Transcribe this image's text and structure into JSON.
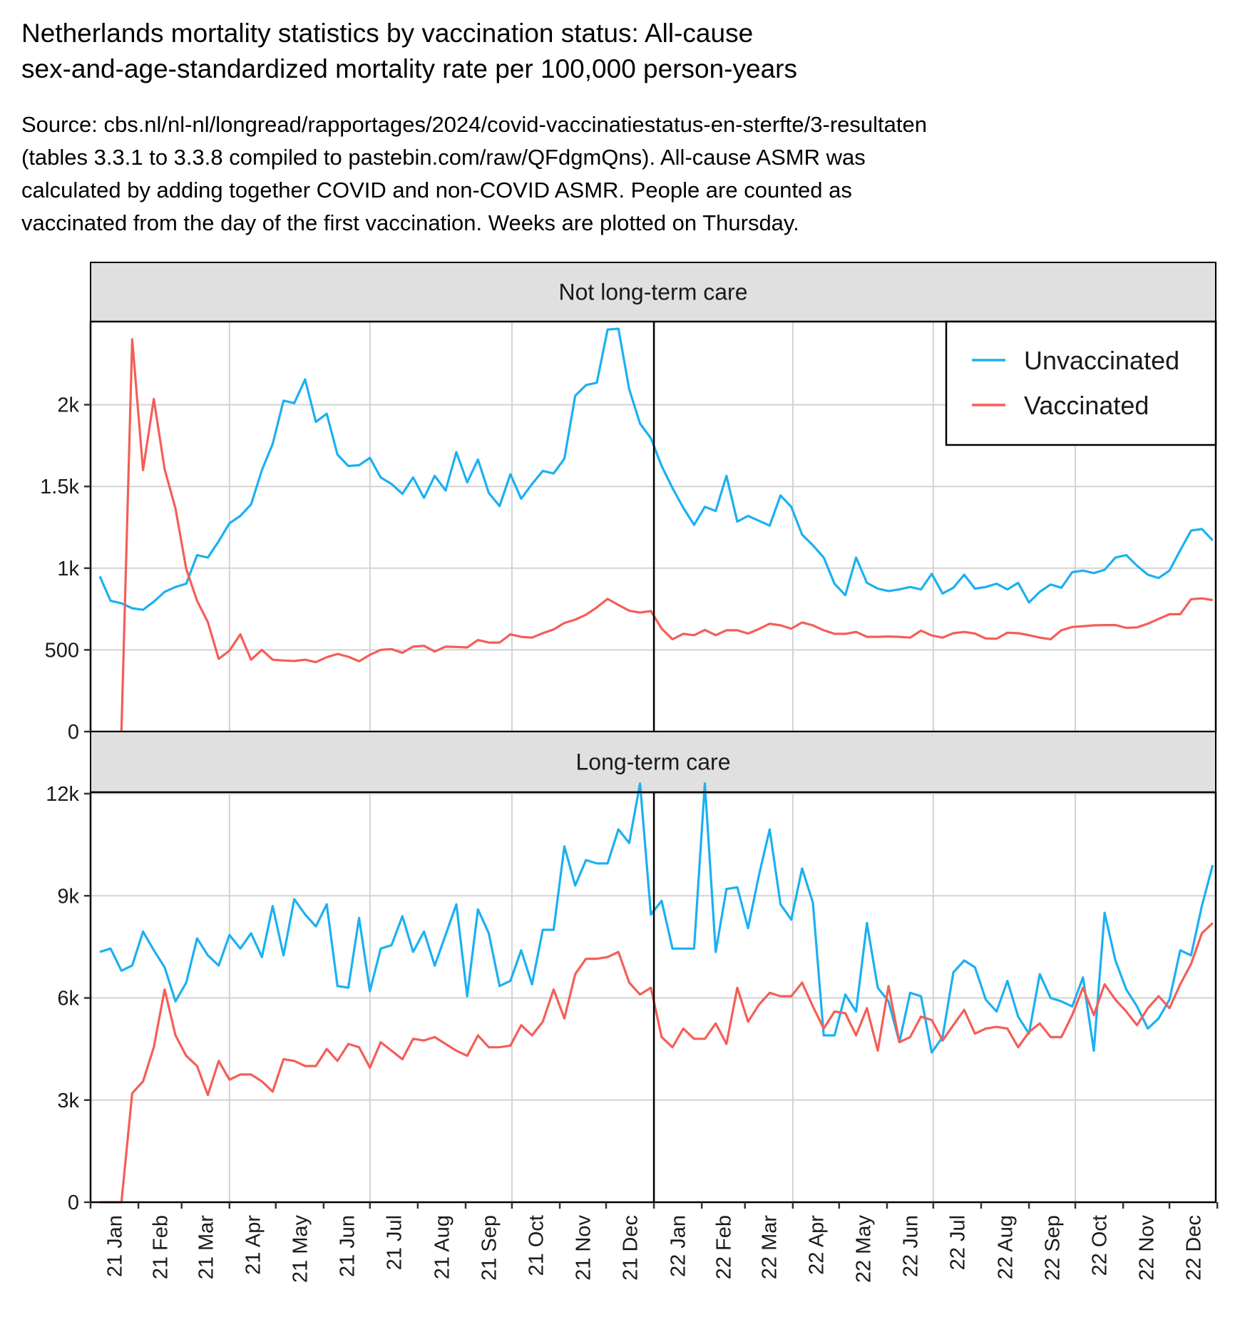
{
  "title": {
    "line1": "Netherlands mortality statistics by vaccination status: All-cause",
    "line2": "sex-and-age-standardized mortality rate per 100,000 person-years"
  },
  "subtitle": {
    "line1": "Source: cbs.nl/nl-nl/longread/rapportages/2024/covid-vaccinatiestatus-en-sterfte/3-resultaten",
    "line2": "(tables 3.3.1 to 3.3.8 compiled to pastebin.com/raw/QFdgmQns). All-cause ASMR was",
    "line3": "calculated by adding together COVID and non-COVID ASMR. People are counted as",
    "line4": "vaccinated from the day of the first vaccination. Weeks are plotted on Thursday."
  },
  "colors": {
    "unvaccinated": "#1bb0f2",
    "vaccinated": "#f45e57",
    "strip_background": "#e0e0e0",
    "grid": "#d3d3d3"
  },
  "chart_data": {
    "type": "line",
    "x_tick_labels": [
      "21 Jan",
      "21 Feb",
      "21 Mar",
      "21 Apr",
      "21 May",
      "21 Jun",
      "21 Jul",
      "21 Aug",
      "21 Sep",
      "21 Oct",
      "21 Nov",
      "21 Dec",
      "22 Jan",
      "22 Feb",
      "22 Mar",
      "22 Apr",
      "22 May",
      "22 Jun",
      "22 Jul",
      "22 Aug",
      "22 Sep",
      "22 Oct",
      "22 Nov",
      "22 Dec"
    ],
    "x_range": [
      "2021-01-01",
      "2022-12-31"
    ],
    "x_start": "2021-01-07",
    "x_step_days": 7,
    "vertical_reference_line": "2022-01-01",
    "grid": true,
    "legend": {
      "position": "top-right",
      "entries": [
        "Unvaccinated",
        "Vaccinated"
      ]
    },
    "panels": [
      {
        "label": "Not long-term care",
        "ylim": [
          0,
          2500
        ],
        "yticks": [
          0,
          500,
          1000,
          1500,
          2000
        ],
        "ytick_labels": [
          "0",
          "500",
          "1k",
          "1.5k",
          "2k"
        ],
        "series": [
          {
            "name": "Unvaccinated",
            "color": "#1bb0f2",
            "values": [
              950,
              800,
              785,
              755,
              745,
              795,
              855,
              885,
              905,
              1080,
              1065,
              1165,
              1275,
              1320,
              1390,
              1600,
              1760,
              2025,
              2010,
              2155,
              1895,
              1945,
              1695,
              1625,
              1630,
              1675,
              1555,
              1515,
              1455,
              1555,
              1430,
              1565,
              1475,
              1710,
              1525,
              1665,
              1460,
              1380,
              1575,
              1425,
              1515,
              1595,
              1580,
              1670,
              2055,
              2120,
              2135,
              2460,
              2465,
              2095,
              1885,
              1795,
              1625,
              1490,
              1370,
              1265,
              1375,
              1350,
              1565,
              1285,
              1320,
              1290,
              1260,
              1445,
              1375,
              1205,
              1140,
              1065,
              905,
              835,
              1065,
              910,
              875,
              860,
              870,
              885,
              870,
              965,
              845,
              880,
              960,
              875,
              885,
              905,
              870,
              910,
              790,
              855,
              900,
              880,
              975,
              985,
              970,
              990,
              1065,
              1080,
              1015,
              960,
              940,
              985,
              1110,
              1230,
              1240,
              1170
            ]
          },
          {
            "name": "Vaccinated",
            "color": "#f45e57",
            "values": [
              null,
              null,
              0,
              2400,
              1600,
              2035,
              1605,
              1365,
              995,
              800,
              670,
              445,
              495,
              595,
              440,
              500,
              440,
              435,
              432,
              440,
              425,
              455,
              475,
              458,
              430,
              470,
              500,
              505,
              482,
              520,
              525,
              490,
              520,
              518,
              515,
              560,
              545,
              545,
              595,
              580,
              575,
              602,
              625,
              665,
              685,
              715,
              760,
              812,
              775,
              740,
              728,
              738,
              630,
              565,
              598,
              590,
              622,
              590,
              620,
              620,
              600,
              628,
              660,
              650,
              630,
              668,
              650,
              620,
              598,
              598,
              610,
              580,
              580,
              582,
              580,
              575,
              618,
              588,
              575,
              602,
              610,
              600,
              570,
              568,
              605,
              602,
              590,
              575,
              565,
              620,
              640,
              645,
              650,
              652,
              652,
              635,
              638,
              660,
              690,
              718,
              718,
              810,
              815,
              805
            ]
          }
        ]
      },
      {
        "label": "Long-term care",
        "ylim": [
          0,
          12000
        ],
        "yticks": [
          0,
          3000,
          6000,
          9000,
          12000
        ],
        "ytick_labels": [
          "0",
          "3k",
          "6k",
          "9k",
          "12k"
        ],
        "series": [
          {
            "name": "Unvaccinated",
            "color": "#1bb0f2",
            "values": [
              7350,
              7450,
              6800,
              6950,
              7950,
              7400,
              6900,
              5900,
              6450,
              7750,
              7250,
              6950,
              7850,
              7450,
              7900,
              7200,
              8700,
              7250,
              8900,
              8450,
              8100,
              8750,
              6350,
              6300,
              8350,
              6200,
              7450,
              7550,
              8400,
              7350,
              7950,
              6950,
              7850,
              8750,
              6050,
              8600,
              7900,
              6350,
              6500,
              7400,
              6400,
              8000,
              8000,
              10450,
              9300,
              10050,
              9950,
              9950,
              10950,
              10550,
              12300,
              8450,
              8850,
              7450,
              7450,
              7450,
              12300,
              7350,
              9200,
              9250,
              8050,
              9600,
              10950,
              8750,
              8300,
              9800,
              8800,
              4900,
              4900,
              6100,
              5600,
              8200,
              6300,
              5900,
              4700,
              6150,
              6050,
              4400,
              4850,
              6750,
              7100,
              6900,
              5950,
              5600,
              6500,
              5450,
              4950,
              6700,
              6000,
              5900,
              5750,
              6600,
              4450,
              8500,
              7100,
              6250,
              5750,
              5100,
              5400,
              5950,
              7400,
              7250,
              8700,
              9900
            ]
          },
          {
            "name": "Vaccinated",
            "color": "#f45e57",
            "values": [
              0,
              0,
              0,
              3200,
              3550,
              4550,
              6250,
              4900,
              4300,
              4000,
              3150,
              4150,
              3600,
              3750,
              3750,
              3550,
              3250,
              4200,
              4150,
              4000,
              4000,
              4500,
              4150,
              4650,
              4550,
              3950,
              4700,
              4450,
              4200,
              4800,
              4750,
              4850,
              4650,
              4450,
              4300,
              4900,
              4550,
              4550,
              4600,
              5200,
              4900,
              5300,
              6250,
              5400,
              6700,
              7150,
              7150,
              7200,
              7350,
              6450,
              6100,
              6300,
              4850,
              4550,
              5100,
              4800,
              4800,
              5250,
              4650,
              6300,
              5300,
              5800,
              6150,
              6050,
              6050,
              6450,
              5750,
              5100,
              5600,
              5550,
              4900,
              5700,
              4450,
              6350,
              4700,
              4850,
              5450,
              5350,
              4750,
              5200,
              5650,
              4950,
              5100,
              5150,
              5100,
              4550,
              5000,
              5250,
              4850,
              4850,
              5500,
              6300,
              5500,
              6400,
              5950,
              5600,
              5200,
              5700,
              6050,
              5700,
              6400,
              7000,
              7900,
              8200
            ]
          }
        ]
      }
    ]
  }
}
